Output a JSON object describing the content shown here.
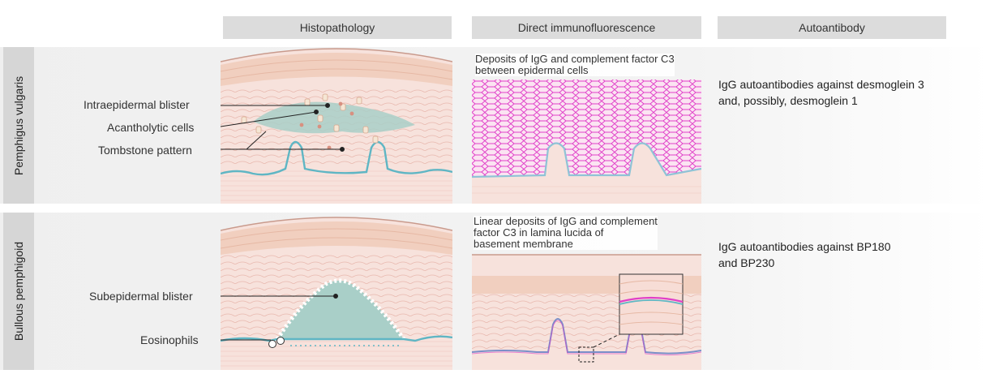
{
  "columns": {
    "histopathology": "Histopathology",
    "dif": "Direct immunofluorescence",
    "autoantibody": "Autoantibody"
  },
  "rows": [
    {
      "name": "Pemphigus vulgaris",
      "labels": [
        "Intraepidermal blister",
        "Acantholytic cells",
        "Tombstone pattern"
      ],
      "dif_caption": [
        "Deposits of IgG and complement factor C3",
        "between epidermal cells"
      ],
      "autoantibody": [
        "IgG autoantibodies against desmoglein 3",
        "and, possibly, desmoglein 1"
      ]
    },
    {
      "name": "Bullous pemphigoid",
      "labels": [
        "Subepidermal blister",
        "Eosinophils"
      ],
      "dif_caption": [
        "Linear deposits of IgG and complement",
        "factor C3 in lamina lucida of",
        "basement membrane"
      ],
      "autoantibody": [
        "IgG autoantibodies against BP180",
        "and BP230"
      ]
    }
  ],
  "colors": {
    "skin": "#f6dcd6",
    "blister": "#a9cfc8",
    "basement": "#5fb6c4",
    "fluorescence": "#e040c8"
  }
}
